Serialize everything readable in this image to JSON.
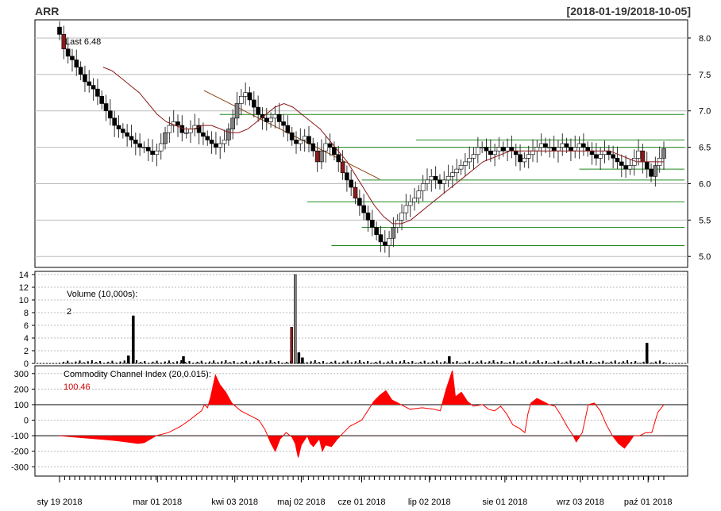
{
  "header": {
    "symbol": "ARR",
    "date_range": "[2018-01-19/2018-10-05]"
  },
  "colors": {
    "up": "#ffffff",
    "down": "#000000",
    "down_big": "#8b1a1a",
    "up_big": "#808080",
    "sma": "#8b1a1a",
    "trend": "#8b4513",
    "level": "#228b22",
    "cci_fill": "#ff0000",
    "cci_line": "#ff0000",
    "grid": "#bbbbbb"
  },
  "chart_data": [
    {
      "id": "price",
      "type": "candlestick",
      "label": "Last 6.48",
      "ylim": [
        4.85,
        8.25
      ],
      "yticks": [
        5.0,
        5.5,
        6.0,
        6.5,
        7.0,
        7.5,
        8.0
      ],
      "ytick_labels": [
        "5.0",
        "5.5",
        "6.0",
        "6.5",
        "7.0",
        "7.5",
        "8.0"
      ],
      "approx_closes": [
        8.05,
        7.85,
        7.75,
        7.7,
        7.6,
        7.5,
        7.4,
        7.35,
        7.3,
        7.2,
        7.1,
        7.0,
        6.9,
        6.8,
        6.75,
        6.7,
        6.65,
        6.6,
        6.55,
        6.5,
        6.5,
        6.45,
        6.4,
        6.45,
        6.55,
        6.7,
        6.8,
        6.85,
        6.8,
        6.7,
        6.7,
        6.75,
        6.8,
        6.7,
        6.65,
        6.6,
        6.55,
        6.5,
        6.55,
        6.6,
        6.75,
        6.9,
        7.1,
        7.2,
        7.25,
        7.15,
        7.05,
        6.95,
        6.9,
        6.85,
        6.9,
        6.95,
        6.85,
        6.8,
        6.7,
        6.6,
        6.55,
        6.6,
        6.65,
        6.55,
        6.45,
        6.3,
        6.45,
        6.55,
        6.5,
        6.4,
        6.3,
        6.15,
        6.05,
        5.95,
        5.8,
        5.7,
        5.6,
        5.5,
        5.4,
        5.3,
        5.2,
        5.15,
        5.25,
        5.4,
        5.5,
        5.6,
        5.7,
        5.75,
        5.8,
        5.9,
        6.0,
        6.05,
        6.1,
        6.05,
        6.0,
        6.05,
        6.1,
        6.15,
        6.2,
        6.25,
        6.3,
        6.35,
        6.4,
        6.5,
        6.5,
        6.45,
        6.4,
        6.45,
        6.5,
        6.45,
        6.5,
        6.45,
        6.4,
        6.3,
        6.35,
        6.4,
        6.45,
        6.5,
        6.55,
        6.5,
        6.5,
        6.45,
        6.5,
        6.55,
        6.5,
        6.45,
        6.5,
        6.55,
        6.5,
        6.45,
        6.4,
        6.35,
        6.4,
        6.45,
        6.4,
        6.35,
        6.3,
        6.25,
        6.2,
        6.25,
        6.35,
        6.45,
        6.3,
        6.2,
        6.1,
        6.25,
        6.35,
        6.48
      ],
      "sma_values": [
        7.6,
        7.55,
        7.45,
        7.35,
        7.25,
        7.1,
        6.95,
        6.85,
        6.8,
        6.75,
        6.75,
        6.8,
        6.8,
        6.75,
        6.7,
        6.7,
        6.75,
        6.85,
        6.95,
        7.05,
        7.1,
        7.05,
        6.95,
        6.85,
        6.75,
        6.6,
        6.45,
        6.3,
        6.1,
        5.9,
        5.7,
        5.55,
        5.45,
        5.45,
        5.5,
        5.6,
        5.7,
        5.8,
        5.9,
        6.0,
        6.1,
        6.2,
        6.3,
        6.35,
        6.4,
        6.45,
        6.45,
        6.45,
        6.45,
        6.45,
        6.45,
        6.45,
        6.45,
        6.45,
        6.45,
        6.45,
        6.45,
        6.4,
        6.35,
        6.3,
        6.3,
        6.3,
        6.3
      ],
      "trend_line": {
        "from": [
          0.239,
          7.28
        ],
        "to": [
          0.53,
          6.06
        ]
      },
      "levels": [
        {
          "value": 6.95,
          "from": 0.265
        },
        {
          "value": 6.6,
          "from": 0.59
        },
        {
          "value": 6.5,
          "from": 0.44
        },
        {
          "value": 6.2,
          "from": 0.86
        },
        {
          "value": 6.05,
          "from": 0.5
        },
        {
          "value": 5.75,
          "from": 0.41
        },
        {
          "value": 5.4,
          "from": 0.5
        },
        {
          "value": 5.15,
          "from": 0.45
        }
      ]
    },
    {
      "id": "volume",
      "type": "bar",
      "label": "Volume (10,000s):",
      "value_label": "2",
      "ylim": [
        0,
        14.5
      ],
      "yticks": [
        0,
        2,
        4,
        6,
        8,
        10,
        12,
        14
      ],
      "ytick_labels": [
        "0",
        "2",
        "4",
        "6",
        "8",
        "10",
        "12",
        "14"
      ],
      "spikes": [
        {
          "x": 0.122,
          "value": 7.5
        },
        {
          "x": 0.114,
          "value": 1.2
        },
        {
          "x": 0.205,
          "value": 1.1
        },
        {
          "x": 0.384,
          "value": 5.7
        },
        {
          "x": 0.39,
          "value": 14
        },
        {
          "x": 0.396,
          "value": 1.7
        },
        {
          "x": 0.402,
          "value": 0.9
        },
        {
          "x": 0.645,
          "value": 1.1
        },
        {
          "x": 0.972,
          "value": 3.2
        }
      ]
    },
    {
      "id": "cci",
      "type": "line",
      "label": "Commodity Channel Index (20,0.015):",
      "value_label": "100.46",
      "ylim": [
        -360,
        350
      ],
      "yticks": [
        -300,
        -200,
        -100,
        0,
        100,
        200,
        300
      ],
      "ytick_labels": [
        "-300",
        "-200",
        "-100",
        "0",
        "100",
        "200",
        "300"
      ],
      "thresholds": [
        100,
        -100
      ],
      "points": [
        [
          0.0,
          -100
        ],
        [
          0.03,
          -110
        ],
        [
          0.06,
          -120
        ],
        [
          0.09,
          -130
        ],
        [
          0.11,
          -140
        ],
        [
          0.13,
          -150
        ],
        [
          0.14,
          -145
        ],
        [
          0.16,
          -100
        ],
        [
          0.18,
          -80
        ],
        [
          0.2,
          -40
        ],
        [
          0.215,
          0
        ],
        [
          0.228,
          40
        ],
        [
          0.235,
          60
        ],
        [
          0.24,
          100
        ],
        [
          0.245,
          80
        ],
        [
          0.25,
          150
        ],
        [
          0.258,
          290
        ],
        [
          0.265,
          230
        ],
        [
          0.275,
          180
        ],
        [
          0.285,
          110
        ],
        [
          0.3,
          60
        ],
        [
          0.31,
          40
        ],
        [
          0.325,
          10
        ],
        [
          0.33,
          0
        ],
        [
          0.34,
          -60
        ],
        [
          0.35,
          -150
        ],
        [
          0.357,
          -200
        ],
        [
          0.365,
          -120
        ],
        [
          0.375,
          -80
        ],
        [
          0.385,
          -110
        ],
        [
          0.39,
          -150
        ],
        [
          0.395,
          -240
        ],
        [
          0.4,
          -160
        ],
        [
          0.41,
          -100
        ],
        [
          0.415,
          -150
        ],
        [
          0.42,
          -170
        ],
        [
          0.43,
          -120
        ],
        [
          0.435,
          -200
        ],
        [
          0.44,
          -160
        ],
        [
          0.45,
          -170
        ],
        [
          0.46,
          -120
        ],
        [
          0.47,
          -80
        ],
        [
          0.48,
          -40
        ],
        [
          0.49,
          -20
        ],
        [
          0.5,
          0
        ],
        [
          0.51,
          60
        ],
        [
          0.52,
          120
        ],
        [
          0.53,
          160
        ],
        [
          0.54,
          190
        ],
        [
          0.55,
          130
        ],
        [
          0.56,
          110
        ],
        [
          0.57,
          90
        ],
        [
          0.58,
          70
        ],
        [
          0.6,
          80
        ],
        [
          0.62,
          70
        ],
        [
          0.63,
          60
        ],
        [
          0.64,
          200
        ],
        [
          0.65,
          320
        ],
        [
          0.655,
          150
        ],
        [
          0.665,
          180
        ],
        [
          0.675,
          120
        ],
        [
          0.685,
          90
        ],
        [
          0.7,
          100
        ],
        [
          0.71,
          70
        ],
        [
          0.72,
          60
        ],
        [
          0.73,
          90
        ],
        [
          0.74,
          40
        ],
        [
          0.75,
          -30
        ],
        [
          0.76,
          -50
        ],
        [
          0.77,
          -80
        ],
        [
          0.775,
          40
        ],
        [
          0.78,
          110
        ],
        [
          0.79,
          140
        ],
        [
          0.8,
          120
        ],
        [
          0.81,
          100
        ],
        [
          0.82,
          90
        ],
        [
          0.83,
          30
        ],
        [
          0.84,
          -40
        ],
        [
          0.85,
          -100
        ],
        [
          0.855,
          -140
        ],
        [
          0.86,
          -110
        ],
        [
          0.865,
          -80
        ],
        [
          0.875,
          100
        ],
        [
          0.885,
          110
        ],
        [
          0.895,
          60
        ],
        [
          0.905,
          -30
        ],
        [
          0.915,
          -100
        ],
        [
          0.925,
          -150
        ],
        [
          0.935,
          -180
        ],
        [
          0.945,
          -130
        ],
        [
          0.95,
          -100
        ],
        [
          0.96,
          -100
        ],
        [
          0.97,
          -80
        ],
        [
          0.98,
          -80
        ],
        [
          0.99,
          50
        ],
        [
          1.0,
          100
        ]
      ]
    }
  ],
  "x_axis": {
    "tick_labels": [
      "sty 19 2018",
      "mar 01 2018",
      "kwi 03 2018",
      "maj 02 2018",
      "cze 01 2018",
      "lip 02 2018",
      "sie 01 2018",
      "wrz 03 2018",
      "paź 01 2018"
    ],
    "tick_positions": [
      0.0,
      0.162,
      0.29,
      0.4,
      0.5,
      0.612,
      0.737,
      0.862,
      0.974
    ]
  }
}
